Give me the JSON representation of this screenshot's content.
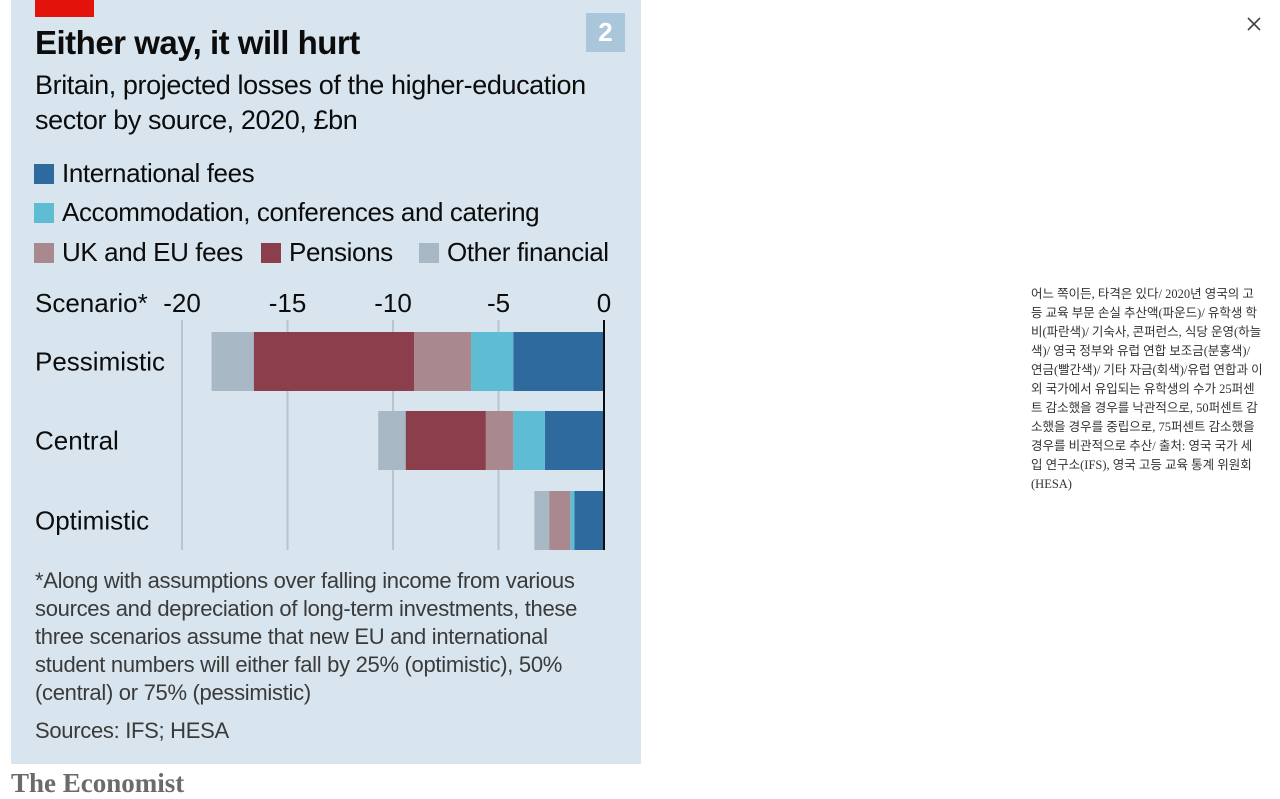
{
  "chart_data": {
    "type": "bar",
    "orientation": "horizontal-stacked",
    "badge": "2",
    "title": "Either way, it will hurt",
    "subtitle": "Britain, projected losses of the higher-education sector by source, 2020, £bn",
    "legend": [
      {
        "name": "International fees",
        "color": "#2e6a9e"
      },
      {
        "name": "Accommodation, conferences and catering",
        "color": "#5fbdd3"
      },
      {
        "name": "UK and EU fees",
        "color": "#a98890"
      },
      {
        "name": "Pensions",
        "color": "#8b3e4b"
      },
      {
        "name": "Other financial",
        "color": "#a8b8c5"
      }
    ],
    "axis_label": "Scenario*",
    "xlim": [
      -20,
      0
    ],
    "ticks": [
      -20,
      -15,
      -10,
      -5,
      0
    ],
    "tick_labels": [
      "-20",
      "-15",
      "-10",
      "-5",
      "0"
    ],
    "categories": [
      "Pessimistic",
      "Central",
      "Optimistic"
    ],
    "series": [
      {
        "name": "International fees",
        "color": "#2e6a9e",
        "values": [
          -4.3,
          -2.8,
          -1.4
        ]
      },
      {
        "name": "Accommodation, conferences and catering",
        "color": "#5fbdd3",
        "values": [
          -2.0,
          -1.5,
          -0.2
        ]
      },
      {
        "name": "UK and EU fees",
        "color": "#a98890",
        "values": [
          -2.7,
          -1.3,
          -1.0
        ]
      },
      {
        "name": "Pensions",
        "color": "#8b3e4b",
        "values": [
          -7.6,
          -3.8,
          0
        ]
      },
      {
        "name": "Other financial",
        "color": "#a8b8c5",
        "values": [
          -2.0,
          -1.3,
          -0.7
        ]
      }
    ]
  },
  "footnote": "*Along with assumptions over falling income from various sources and depreciation of long-term investments, these three scenarios assume that new EU and international student numbers will either fall by 25% (optimistic), 50% (central) or 75% (pessimistic)",
  "sources": "Sources: IFS; HESA",
  "brand": "The Economist",
  "caption": "어느 쪽이든, 타격은 있다/ 2020년 영국의 고등 교육 부문 손실 추산액(파운드)/ 유학생 학비(파란색)/ 기숙사, 콘퍼런스, 식당 운영(하늘색)/ 영국 정부와 유럽 연합 보조금(분홍색)/ 연금(빨간색)/ 기타 자금(회색)/유럽 연합과 이외 국가에서 유입되는 유학생의 수가 25퍼센트 감소했을 경우를 낙관적으로, 50퍼센트 감소했을 경우를 중립으로, 75퍼센트 감소했을 경우를 비관적으로 추산/ 출처: 영국 국가 세입 연구소(IFS), 영국 고등 교육 통계 위원회(HESA)",
  "icons": {
    "close": "close-icon"
  },
  "colors": {
    "panel_bg": "#d8e5ee",
    "accent_red": "#e3120b",
    "badge_bg": "#a9c6da"
  }
}
